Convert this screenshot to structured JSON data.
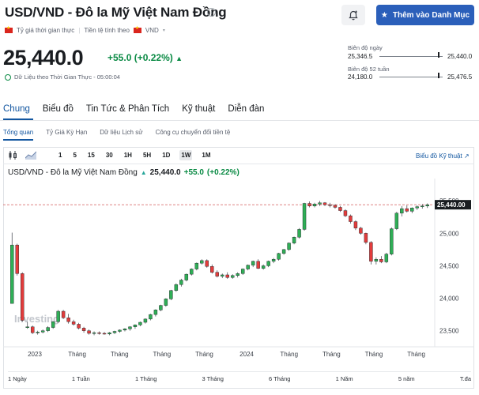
{
  "header": {
    "title": "USD/VND - Đô la Mỹ Việt Nam Đồng",
    "watchlist_label": "Thêm vào Danh Mục",
    "realtime_label": "Tỷ giá thời gian thực",
    "currency_note": "Tiền tệ tính theo",
    "currency": "VND"
  },
  "quote": {
    "price": "25,440.0",
    "change": "+55.0",
    "change_pct": "(+0.22%)",
    "realtime_text": "Dữ Liệu theo Thời Gian Thực - 05:00:04"
  },
  "ranges_info": {
    "day_label": "Biên độ ngày",
    "day_low": "25,346.5",
    "day_high": "25,440.0",
    "week52_label": "Biên độ 52 tuần",
    "week52_low": "24,180.0",
    "week52_high": "25,476.5"
  },
  "nav": {
    "tabs": [
      "Chung",
      "Biểu đồ",
      "Tin Tức & Phân Tích",
      "Kỹ thuật",
      "Diễn đàn"
    ],
    "sub_tabs": [
      "Tổng quan",
      "Tỷ Giá Kỳ Hạn",
      "Dữ liệu Lịch sử",
      "Công cụ chuyển đổi tiền tệ"
    ]
  },
  "toolbar": {
    "intervals": [
      "1",
      "5",
      "15",
      "30",
      "1H",
      "5H",
      "1D",
      "1W",
      "1M"
    ],
    "selected": "1W",
    "advanced_link": "Biểu đồ Kỹ thuật"
  },
  "chart_header": {
    "title": "USD/VND - Đô la Mỹ Việt Nam Đồng",
    "price": "25,440.0",
    "change": "+55.0",
    "change_pct": "(+0.22%)",
    "watermark": "Investing"
  },
  "chart_data": {
    "type": "candlestick",
    "x_ticks": [
      "2023",
      "Tháng",
      "Tháng",
      "Tháng",
      "Tháng",
      "2024",
      "Tháng",
      "Tháng",
      "Tháng",
      "Tháng"
    ],
    "y_ticks": [
      23500,
      24000,
      24500,
      25000,
      25500
    ],
    "last_price_label": "25,440.00",
    "ylim": [
      23350,
      25600
    ],
    "colors": {
      "up": "#26a69a",
      "down": "#e23c3c",
      "line": "#1e9e43"
    },
    "candles": [
      [
        23550,
        23640,
        23530,
        23560
      ],
      [
        23560,
        23580,
        23450,
        23470
      ],
      [
        23470,
        23500,
        23440,
        23480
      ],
      [
        23480,
        23520,
        23460,
        23500
      ],
      [
        23500,
        23570,
        23480,
        23550
      ],
      [
        23550,
        23650,
        23530,
        23640
      ],
      [
        23640,
        23820,
        23620,
        23800
      ],
      [
        23800,
        23820,
        23680,
        23700
      ],
      [
        23700,
        23760,
        23610,
        23640
      ],
      [
        23640,
        23670,
        23580,
        23600
      ],
      [
        23600,
        23620,
        23520,
        23540
      ],
      [
        23540,
        23560,
        23470,
        23500
      ],
      [
        23500,
        23520,
        23440,
        23460
      ],
      [
        23460,
        23490,
        23430,
        23470
      ],
      [
        23470,
        23490,
        23440,
        23460
      ],
      [
        23460,
        23480,
        23440,
        23450
      ],
      [
        23450,
        23480,
        23430,
        23470
      ],
      [
        23470,
        23500,
        23450,
        23490
      ],
      [
        23490,
        23520,
        23470,
        23510
      ],
      [
        23510,
        23540,
        23490,
        23530
      ],
      [
        23530,
        23570,
        23500,
        23560
      ],
      [
        23560,
        23600,
        23530,
        23590
      ],
      [
        23590,
        23640,
        23570,
        23630
      ],
      [
        23630,
        23690,
        23610,
        23680
      ],
      [
        23680,
        23760,
        23660,
        23750
      ],
      [
        23750,
        23830,
        23720,
        23820
      ],
      [
        23820,
        23900,
        23800,
        23890
      ],
      [
        23890,
        24000,
        23870,
        23990
      ],
      [
        23990,
        24130,
        23970,
        24120
      ],
      [
        24120,
        24230,
        24100,
        24210
      ],
      [
        24210,
        24300,
        24180,
        24280
      ],
      [
        24280,
        24380,
        24260,
        24370
      ],
      [
        24370,
        24460,
        24350,
        24450
      ],
      [
        24450,
        24550,
        24430,
        24540
      ],
      [
        24540,
        24600,
        24520,
        24580
      ],
      [
        24580,
        24600,
        24470,
        24490
      ],
      [
        24490,
        24520,
        24380,
        24400
      ],
      [
        24400,
        24430,
        24320,
        24340
      ],
      [
        24340,
        24380,
        24310,
        24360
      ],
      [
        24360,
        24400,
        24300,
        24320
      ],
      [
        24320,
        24370,
        24300,
        24350
      ],
      [
        24350,
        24400,
        24320,
        24380
      ],
      [
        24380,
        24460,
        24360,
        24450
      ],
      [
        24450,
        24520,
        24430,
        24510
      ],
      [
        24510,
        24580,
        24480,
        24570
      ],
      [
        24570,
        24600,
        24450,
        24460
      ],
      [
        24460,
        24520,
        24440,
        24500
      ],
      [
        24500,
        24580,
        24480,
        24570
      ],
      [
        24570,
        24620,
        24540,
        24600
      ],
      [
        24600,
        24700,
        24580,
        24690
      ],
      [
        24690,
        24760,
        24670,
        24750
      ],
      [
        24750,
        24860,
        24730,
        24850
      ],
      [
        24850,
        24950,
        24830,
        24940
      ],
      [
        24940,
        25080,
        24920,
        25060
      ],
      [
        25060,
        25470,
        25040,
        25460
      ],
      [
        25460,
        25490,
        25400,
        25420
      ],
      [
        25420,
        25470,
        25400,
        25450
      ],
      [
        25450,
        25500,
        25420,
        25470
      ],
      [
        25470,
        25480,
        25420,
        25440
      ],
      [
        25440,
        25470,
        25400,
        25430
      ],
      [
        25430,
        25450,
        25380,
        25400
      ],
      [
        25400,
        25420,
        25330,
        25350
      ],
      [
        25350,
        25370,
        25250,
        25270
      ],
      [
        25270,
        25290,
        25150,
        25180
      ],
      [
        25180,
        25200,
        25050,
        25080
      ],
      [
        25080,
        25100,
        24980,
        25000
      ],
      [
        25000,
        25010,
        24830,
        24860
      ],
      [
        24860,
        24880,
        24520,
        24570
      ],
      [
        24570,
        24630,
        24520,
        24600
      ],
      [
        24600,
        24650,
        24540,
        24560
      ],
      [
        24560,
        24700,
        24540,
        24680
      ],
      [
        24680,
        25090,
        24660,
        25070
      ],
      [
        25070,
        25330,
        25050,
        25310
      ],
      [
        25310,
        25420,
        25260,
        25380
      ],
      [
        25380,
        25430,
        25320,
        25340
      ],
      [
        25340,
        25400,
        25310,
        25390
      ],
      [
        25390,
        25430,
        25360,
        25410
      ],
      [
        25410,
        25450,
        25380,
        25420
      ],
      [
        25420,
        25460,
        25390,
        25440
      ]
    ],
    "start_segment": [
      [
        23920,
        25010,
        24800,
        24820
      ],
      [
        24820,
        24840,
        24350,
        24380
      ],
      [
        24380,
        24400,
        23640,
        23660
      ]
    ]
  },
  "range_buttons": [
    "1 Ngày",
    "1 Tuần",
    "1 Tháng",
    "3 Tháng",
    "6 Tháng",
    "1 Năm",
    "5 năm",
    "T.đa"
  ]
}
